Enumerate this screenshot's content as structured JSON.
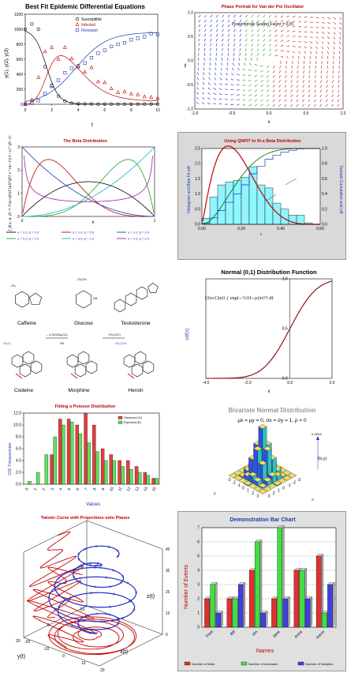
{
  "chart_data": [
    {
      "id": "p1",
      "type": "line",
      "title": "Best Fit  Epidemic Differential Equations",
      "xlabel": "t",
      "ylabel": "y(1), y(2), y(3)",
      "xlim": [
        0,
        10
      ],
      "ylim": [
        0,
        1200
      ],
      "xticks": [
        "0",
        "2",
        "4",
        "6",
        "8",
        "10"
      ],
      "yticks": [
        "0",
        "200",
        "400",
        "600",
        "800",
        "1000",
        "1200"
      ],
      "legend_position": "top-center",
      "series": [
        {
          "name": "Susceptible",
          "color": "#000000",
          "marker": "circle",
          "x": [
            0,
            0.5,
            1,
            1.5,
            2,
            2.5,
            3,
            3.5,
            4,
            4.5,
            5,
            5.5,
            6,
            6.5,
            7,
            7.5,
            8,
            8.5,
            9,
            9.5,
            10
          ],
          "y": [
            1000,
            1070,
            1000,
            500,
            250,
            110,
            40,
            15,
            8,
            5,
            4,
            3,
            3,
            3,
            3,
            3,
            3,
            3,
            3,
            3,
            3
          ]
        },
        {
          "name": "Infected",
          "color": "#c00000",
          "marker": "triangle",
          "x": [
            0,
            0.5,
            1,
            1.5,
            2,
            2.5,
            3,
            3.5,
            4,
            4.5,
            5,
            5.5,
            6,
            6.5,
            7,
            7.5,
            8,
            8.5,
            9,
            9.5,
            10
          ],
          "y": [
            5,
            60,
            360,
            700,
            760,
            600,
            760,
            610,
            500,
            430,
            490,
            300,
            290,
            210,
            160,
            170,
            140,
            130,
            100,
            95,
            80
          ]
        },
        {
          "name": "Resistant",
          "color": "#1f3ab0",
          "marker": "square",
          "x": [
            0,
            0.5,
            1,
            1.5,
            2,
            2.5,
            3,
            3.5,
            4,
            4.5,
            5,
            5.5,
            6,
            6.5,
            7,
            7.5,
            8,
            8.5,
            9,
            9.5,
            10
          ],
          "y": [
            0,
            15,
            50,
            140,
            240,
            320,
            420,
            480,
            510,
            550,
            620,
            680,
            720,
            770,
            800,
            820,
            860,
            880,
            900,
            940,
            930
          ]
        }
      ]
    },
    {
      "id": "p2",
      "type": "vector-field",
      "title": "Phase Portrait for Van der Pol Oscillator",
      "annotation": "Proportionaly Scaling Factor = 0.05",
      "xlabel": "x",
      "ylabel": "y",
      "xlim": [
        -1,
        1
      ],
      "ylim": [
        -1,
        1
      ],
      "xticks": [
        "-1.0",
        "-0.5",
        "0.0",
        "0.5",
        "1.0"
      ],
      "yticks": [
        "-1.0",
        "-0.5",
        "0.0",
        "0.5",
        "1.0"
      ],
      "colors": {
        "left": "#2030c0",
        "middle": "#20a020",
        "right": "#c02020"
      }
    },
    {
      "id": "p3",
      "type": "line",
      "title": "The Beta Distribution",
      "xlabel": "x",
      "ylabel": "f_β(x; α, β) = Γ(α+β)/(Γ(α)Γ(β)) x^(α−1)(1−x)^(β−1)",
      "xlim": [
        0,
        1
      ],
      "ylim": [
        0,
        3
      ],
      "xticks": [
        "0",
        "1"
      ],
      "yticks": [
        "0",
        "1",
        "2",
        "3"
      ],
      "series": [
        {
          "name": "α = 2.0, β = 2.0",
          "color": "#000000",
          "alpha": 2,
          "beta": 2
        },
        {
          "name": "α = 2.0, β = 5.0",
          "color": "#c00000",
          "alpha": 2,
          "beta": 5
        },
        {
          "name": "α = 1.0, β = 3.0",
          "color": "#1f3ab0",
          "alpha": 1,
          "beta": 3
        },
        {
          "name": "α = 5.0, β = 2.0",
          "color": "#20a020",
          "alpha": 5,
          "beta": 2
        },
        {
          "name": "α = 3.0, β = 1.0",
          "color": "#20b0c0",
          "alpha": 3,
          "beta": 1
        },
        {
          "name": "α = 0.5, β = 0.5",
          "color": "#a020a0",
          "alpha": 0.5,
          "beta": 0.5
        }
      ]
    },
    {
      "id": "p4",
      "type": "bar",
      "title": "Using QNFIT to fit a Beta Distribution",
      "xlabel": "x",
      "ylabel": "Histogram and Beta Fit pdf",
      "ylabel2": "Sample Cumulative and cdf",
      "xlim": [
        0,
        0.6
      ],
      "ylim": [
        0,
        2.5
      ],
      "ylim2": [
        0,
        1
      ],
      "xticks": [
        "0.00",
        "0.20",
        "0.40",
        "0.60"
      ],
      "yticks": [
        "0.0",
        "0.5",
        "1.0",
        "1.5",
        "2.0",
        "2.5"
      ],
      "yticks2": [
        "0.0",
        "0.2",
        "0.4",
        "0.6",
        "0.8",
        "1.0"
      ],
      "categories": [
        "0.00",
        "0.04",
        "0.08",
        "0.12",
        "0.16",
        "0.20",
        "0.24",
        "0.28",
        "0.32",
        "0.36",
        "0.40",
        "0.44",
        "0.48",
        "0.52",
        "0.56"
      ],
      "values": [
        0.2,
        0.9,
        1.3,
        1.4,
        1.45,
        1.55,
        1.9,
        1.3,
        1.2,
        0.7,
        0.5,
        0.3,
        0.3,
        0.05,
        0.0
      ],
      "annotations": [
        "cdf",
        "pdf"
      ]
    },
    {
      "id": "p5",
      "type": "diagram",
      "labels": [
        "Caffeine",
        "Glucose",
        "Testosterone",
        "Codeine",
        "Morphine",
        "Heroin"
      ],
      "reagents": [
        "→ p-TsCl/Na₂CO₃",
        "CH₃COCl"
      ],
      "groups": [
        "CH₃",
        "CH₃O",
        "HO",
        "CH₃COO",
        "CH₂OH",
        "OH"
      ]
    },
    {
      "id": "p6",
      "type": "line",
      "title": "Normal (0,1) Distribution Function",
      "xlabel": "x",
      "ylabel": "cdf(x)",
      "xlim": [
        -4,
        2
      ],
      "ylim": [
        0,
        1
      ],
      "xticks": [
        "-4.0",
        "-2.0",
        "0.0",
        "2.0"
      ],
      "yticks": [
        "0.0",
        "0.5",
        "1.0"
      ],
      "formula": "1/(σ√(2π)) ∫ exp(−½((t−μ)/σ)²) dt",
      "color": "#8b0000"
    },
    {
      "id": "p7",
      "type": "bar",
      "title": "Fitting a Poisson Distribution",
      "xlabel": "Values",
      "ylabel": "O/E Frequencies",
      "ylim": [
        0,
        12
      ],
      "yticks": [
        "0.0",
        "2.0",
        "4.0",
        "6.0",
        "8.0",
        "10.0",
        "12.0"
      ],
      "categories": [
        "0",
        "1",
        "2",
        "3",
        "4",
        "5",
        "6",
        "7",
        "8",
        "9",
        "10",
        "11",
        "12",
        "13",
        "14",
        "15"
      ],
      "series": [
        {
          "name": "Observed (O)",
          "color": "#e04040",
          "values": [
            0,
            0,
            0,
            5,
            11,
            11,
            10,
            12,
            10,
            6,
            5,
            4,
            4,
            3,
            2,
            1
          ]
        },
        {
          "name": "Expected (E)",
          "color": "#60e060",
          "values": [
            0.5,
            2,
            5,
            8,
            10,
            10.5,
            8.5,
            7,
            5.5,
            4,
            4,
            3,
            2.5,
            2,
            1.5,
            1
          ]
        }
      ],
      "legend_position": "top-right"
    },
    {
      "id": "p8",
      "type": "bar3d",
      "title": "Bivariate Normal Distribution",
      "subtitle": "μx = μy = 0, σx = σy = 1, ρ = 0",
      "zlabel": "f(x,y)",
      "zmax_label": "0.15915",
      "xlabel": "x",
      "ylabel": "y",
      "ticks": [
        "-3",
        "-2",
        "-1",
        "0",
        "1",
        "2",
        "3"
      ]
    },
    {
      "id": "p9",
      "type": "line3d",
      "title": "Twister Curve with Projections onto Planes",
      "zlabel": "z(t)",
      "xlabel": "x(t)",
      "ylabel": "y(t)",
      "zticks": [
        "0",
        "100",
        "200",
        "300",
        "400"
      ],
      "xticks": [
        "-20",
        "-10",
        "0",
        "10",
        "20"
      ],
      "yticks": [
        "-20",
        "0",
        "20"
      ],
      "colors": {
        "curve": "#2030c0",
        "projection": "#c00000"
      }
    },
    {
      "id": "p10",
      "type": "bar",
      "title": "Demonstration Bar Chart",
      "xlabel": "Names",
      "ylabel": "Number of Events",
      "ylim": [
        0,
        7
      ],
      "yticks": [
        "0",
        "1",
        "2",
        "3",
        "4",
        "5",
        "6",
        "7"
      ],
      "categories": [
        "Fred",
        "Bill",
        "Jim",
        "Jane",
        "Anna",
        "Kevin"
      ],
      "legend_position": "bottom",
      "series": [
        {
          "name": "Number of Visits",
          "color": "#e03030",
          "values": [
            2,
            2,
            4,
            2,
            4,
            5
          ]
        },
        {
          "name": "Number of Increases",
          "color": "#40e040",
          "values": [
            3,
            2,
            6,
            7,
            4,
            1
          ]
        },
        {
          "name": "Number of Samples",
          "color": "#4040e0",
          "values": [
            1,
            3,
            1,
            2,
            2,
            3
          ]
        }
      ]
    }
  ]
}
